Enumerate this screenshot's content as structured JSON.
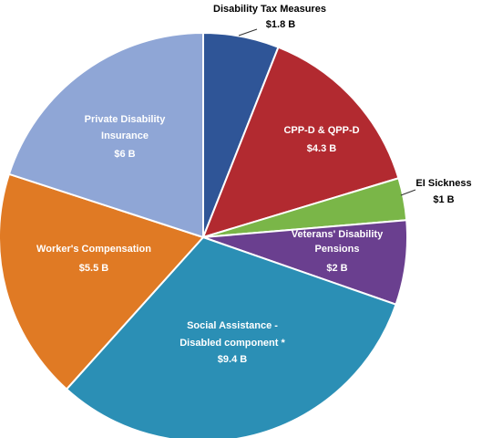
{
  "chart_data": {
    "type": "pie",
    "title": "",
    "slices": [
      {
        "name": "Disability Tax Measures",
        "value_label": "$1.8 B",
        "value": 1.8,
        "color": "#2f5597"
      },
      {
        "name": "CPP-D & QPP-D",
        "value_label": "$4.3 B",
        "value": 4.3,
        "color": "#b22a30"
      },
      {
        "name": "EI Sickness",
        "value_label": "$1 B",
        "value": 1.0,
        "color": "#7ab648"
      },
      {
        "name": "Veterans' Disability Pensions",
        "value_label": "$2 B",
        "value": 2.0,
        "color": "#6a3f8f"
      },
      {
        "name": "Social Assistance - Disabled component *",
        "value_label": "$9.4 B",
        "value": 9.4,
        "color": "#2b8fb5"
      },
      {
        "name": "Worker's Compensation",
        "value_label": "$5.5 B",
        "value": 5.5,
        "color": "#e07a24"
      },
      {
        "name": "Private Disability Insurance",
        "value_label": "$6 B",
        "value": 6.0,
        "color": "#8fa6d6"
      }
    ]
  }
}
